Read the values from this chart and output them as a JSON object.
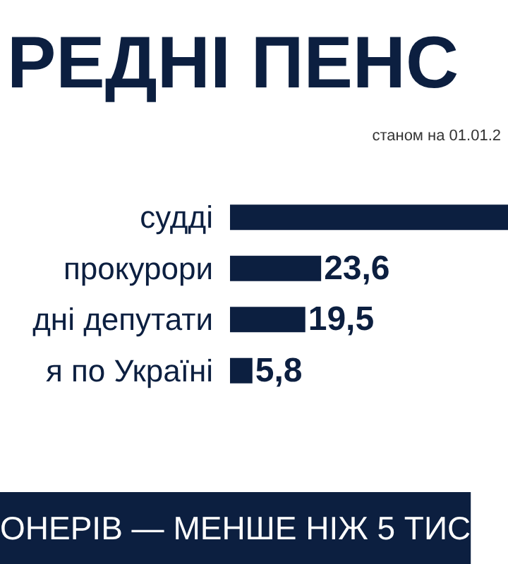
{
  "chart_data": {
    "type": "bar",
    "orientation": "horizontal",
    "title": "РЕДНІ ПЕНС",
    "subtitle": "станом на 01.01.2",
    "categories": [
      "судді",
      "прокурори",
      "дні депутати",
      "я по Україні"
    ],
    "values": [
      72,
      23.6,
      19.5,
      5.8
    ],
    "value_labels": [
      null,
      "23,6",
      "19,5",
      "5,8"
    ],
    "color": "#0c1f40",
    "xlim": [
      0,
      72
    ],
    "tick_labels": "y",
    "grid": false,
    "annotations": [
      "ОНЕРІВ — МЕНШЕ НІЖ 5 ТИС"
    ]
  }
}
